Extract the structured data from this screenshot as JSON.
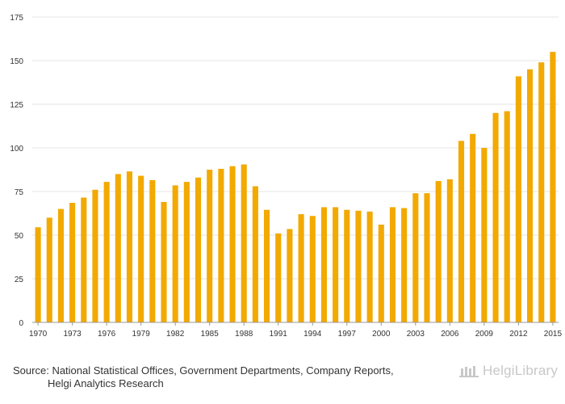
{
  "chart_data": {
    "type": "bar",
    "title": "",
    "xlabel": "",
    "ylabel": "",
    "ylim": [
      0,
      175
    ],
    "yticks": [
      0,
      25,
      50,
      75,
      100,
      125,
      150,
      175
    ],
    "grid": true,
    "bar_color": "#f2a900",
    "grid_color": "#e6e6e6",
    "categories": [
      "1970",
      "1971",
      "1972",
      "1973",
      "1974",
      "1975",
      "1976",
      "1977",
      "1978",
      "1979",
      "1980",
      "1981",
      "1982",
      "1983",
      "1984",
      "1985",
      "1986",
      "1987",
      "1988",
      "1989",
      "1990",
      "1991",
      "1992",
      "1993",
      "1994",
      "1995",
      "1996",
      "1997",
      "1998",
      "1999",
      "2000",
      "2001",
      "2002",
      "2003",
      "2004",
      "2005",
      "2006",
      "2007",
      "2008",
      "2009",
      "2010",
      "2011",
      "2012",
      "2013",
      "2014",
      "2015"
    ],
    "x_tick_labels": [
      "1970",
      "1973",
      "1976",
      "1979",
      "1982",
      "1985",
      "1988",
      "1991",
      "1994",
      "1997",
      "2000",
      "2003",
      "2006",
      "2009",
      "2012",
      "2015"
    ],
    "values": [
      54.5,
      60,
      65,
      68.5,
      71.5,
      76,
      80.5,
      85,
      86.5,
      84,
      81.5,
      69,
      78.5,
      80.5,
      83,
      87.5,
      88,
      89.5,
      90.5,
      78,
      64.5,
      51,
      53.5,
      62,
      61,
      66,
      66,
      64.5,
      64,
      63.5,
      56,
      66,
      65.5,
      74,
      74,
      81,
      82,
      104,
      108,
      100,
      120,
      121,
      141,
      145,
      149,
      155
    ]
  },
  "footer": {
    "source_label": "Source:",
    "source_line1": "National Statistical Offices, Government Departments, Company Reports,",
    "source_line2": "Helgi Analytics Research",
    "logo_text": "HelgiLibrary"
  }
}
